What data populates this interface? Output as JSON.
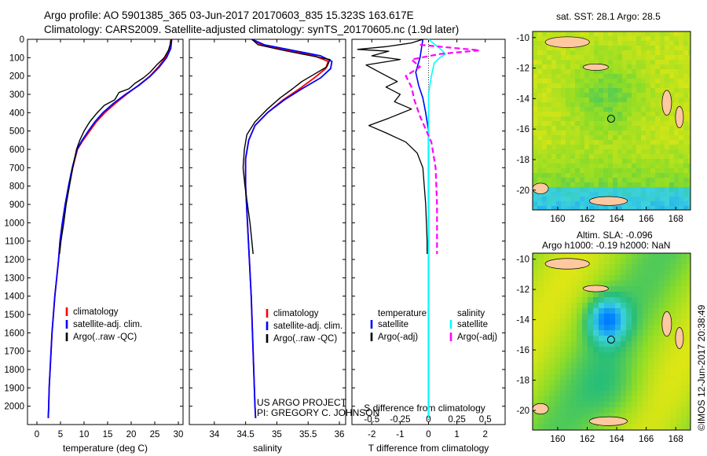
{
  "header": {
    "line1": "Argo profile: AO 5901385_365 03-Jun-2017 20170603_835 15.323S 163.617E",
    "line2": "Climatology: CARS2009. Satellite-adjusted climatology: synTS_20170605.nc (1.9d later)"
  },
  "credits": {
    "project": "US ARGO PROJECT",
    "pi": "PI: GREGORY C. JOHNSON",
    "imos": "©IMOS 12-Jun-2017 20:38:49"
  },
  "maps": {
    "sst_title": "sat. SST: 28.1 Argo: 28.5",
    "sla_title1": "Altim. SLA: -0.096",
    "sla_title2": "Argo h1000: -0.19 h2000: NaN",
    "lon_ticks": [
      "160",
      "162",
      "164",
      "166",
      "168"
    ],
    "lat_ticks": [
      "-10",
      "-12",
      "-14",
      "-16",
      "-18",
      "-20"
    ],
    "lon_range": [
      158.3,
      169.0
    ],
    "lat_range": [
      -21.3,
      -9.6
    ],
    "float_position": [
      163.617,
      -15.323
    ]
  },
  "chart_data": [
    {
      "type": "line",
      "xlabel": "temperature (deg C)",
      "xlim": [
        -2,
        31
      ],
      "ylim": [
        2100,
        0
      ],
      "xticks": [
        0,
        5,
        10,
        15,
        20,
        25,
        30
      ],
      "yticks": [
        0,
        100,
        200,
        300,
        400,
        500,
        600,
        700,
        800,
        900,
        1000,
        1100,
        1200,
        1300,
        1400,
        1500,
        1600,
        1700,
        1800,
        1900,
        2000
      ],
      "legend": [
        "climatology",
        "satellite-adj. clim.",
        "Argo(..raw -QC)"
      ],
      "series": [
        {
          "name": "climatology",
          "color": "#ff0000",
          "width": 1.8,
          "points": [
            [
              28.4,
              0
            ],
            [
              28.2,
              50
            ],
            [
              27.2,
              100
            ],
            [
              25.8,
              150
            ],
            [
              24.0,
              200
            ],
            [
              21.6,
              250
            ],
            [
              19.0,
              300
            ],
            [
              16.6,
              350
            ],
            [
              14.4,
              400
            ],
            [
              12.6,
              450
            ],
            [
              11.2,
              500
            ],
            [
              9.8,
              550
            ],
            [
              8.6,
              600
            ],
            [
              7.6,
              700
            ],
            [
              6.8,
              800
            ],
            [
              6.0,
              900
            ],
            [
              5.4,
              1000
            ],
            [
              4.9,
              1100
            ],
            [
              4.6,
              1200
            ],
            [
              4.2,
              1300
            ],
            [
              3.8,
              1400
            ],
            [
              3.5,
              1500
            ],
            [
              3.2,
              1600
            ],
            [
              3.0,
              1700
            ],
            [
              2.8,
              1800
            ],
            [
              2.6,
              1900
            ],
            [
              2.5,
              2000
            ],
            [
              2.4,
              2065
            ]
          ]
        },
        {
          "name": "satellite-adj. clim.",
          "color": "#0000ff",
          "width": 1.8,
          "points": [
            [
              28.6,
              0
            ],
            [
              28.4,
              50
            ],
            [
              27.5,
              100
            ],
            [
              26.0,
              150
            ],
            [
              24.1,
              200
            ],
            [
              21.7,
              250
            ],
            [
              18.8,
              300
            ],
            [
              16.2,
              350
            ],
            [
              14.0,
              400
            ],
            [
              12.3,
              450
            ],
            [
              10.9,
              500
            ],
            [
              9.6,
              550
            ],
            [
              8.5,
              600
            ],
            [
              7.5,
              700
            ],
            [
              6.7,
              800
            ],
            [
              6.0,
              900
            ],
            [
              5.4,
              1000
            ],
            [
              4.9,
              1100
            ],
            [
              4.6,
              1200
            ],
            [
              4.2,
              1300
            ],
            [
              3.8,
              1400
            ],
            [
              3.5,
              1500
            ],
            [
              3.2,
              1600
            ],
            [
              3.0,
              1700
            ],
            [
              2.8,
              1800
            ],
            [
              2.6,
              1900
            ],
            [
              2.5,
              2000
            ],
            [
              2.4,
              2065
            ]
          ]
        },
        {
          "name": "Argo(..raw -QC)",
          "color": "#000000",
          "width": 1.4,
          "points": [
            [
              28.5,
              0
            ],
            [
              28.3,
              25
            ],
            [
              27.9,
              60
            ],
            [
              27.0,
              100
            ],
            [
              25.4,
              140
            ],
            [
              24.0,
              180
            ],
            [
              22.6,
              210
            ],
            [
              20.8,
              240
            ],
            [
              19.5,
              270
            ],
            [
              17.4,
              290
            ],
            [
              16.5,
              330
            ],
            [
              14.3,
              360
            ],
            [
              12.8,
              400
            ],
            [
              11.2,
              450
            ],
            [
              10.0,
              500
            ],
            [
              9.1,
              550
            ],
            [
              8.4,
              600
            ],
            [
              7.6,
              700
            ],
            [
              6.9,
              800
            ],
            [
              6.2,
              900
            ],
            [
              5.7,
              1000
            ],
            [
              5.1,
              1100
            ],
            [
              4.8,
              1170
            ]
          ]
        }
      ]
    },
    {
      "type": "line",
      "xlabel": "salinity",
      "xlim": [
        33.6,
        36.1
      ],
      "ylim": [
        2100,
        0
      ],
      "xticks": [
        34,
        34.5,
        35,
        35.5,
        36
      ],
      "xticklabels": [
        "34",
        "34.5",
        "35",
        "35.5",
        "36"
      ],
      "yticks": [
        0,
        100,
        200,
        300,
        400,
        500,
        600,
        700,
        800,
        900,
        1000,
        1100,
        1200,
        1300,
        1400,
        1500,
        1600,
        1700,
        1800,
        1900,
        2000
      ],
      "legend": [
        "climatology",
        "satellite-adj. clim.",
        "Argo(..raw -QC)"
      ],
      "series": [
        {
          "name": "climatology",
          "color": "#ff0000",
          "width": 1.8,
          "points": [
            [
              34.6,
              0
            ],
            [
              34.75,
              30
            ],
            [
              35.2,
              60
            ],
            [
              35.6,
              90
            ],
            [
              35.82,
              120
            ],
            [
              35.78,
              160
            ],
            [
              35.6,
              210
            ],
            [
              35.36,
              270
            ],
            [
              35.1,
              330
            ],
            [
              34.85,
              400
            ],
            [
              34.65,
              470
            ],
            [
              34.55,
              550
            ],
            [
              34.5,
              650
            ],
            [
              34.5,
              800
            ],
            [
              34.53,
              1000
            ],
            [
              34.56,
              1200
            ],
            [
              34.59,
              1400
            ],
            [
              34.61,
              1600
            ],
            [
              34.63,
              1800
            ],
            [
              34.65,
              2000
            ],
            [
              34.66,
              2065
            ]
          ]
        },
        {
          "name": "satellite-adj. clim.",
          "color": "#0000ff",
          "width": 1.8,
          "points": [
            [
              34.6,
              0
            ],
            [
              34.8,
              30
            ],
            [
              35.25,
              60
            ],
            [
              35.7,
              90
            ],
            [
              35.88,
              120
            ],
            [
              35.86,
              160
            ],
            [
              35.7,
              210
            ],
            [
              35.4,
              270
            ],
            [
              35.12,
              330
            ],
            [
              34.85,
              400
            ],
            [
              34.65,
              470
            ],
            [
              34.55,
              550
            ],
            [
              34.5,
              650
            ],
            [
              34.5,
              800
            ],
            [
              34.53,
              1000
            ],
            [
              34.56,
              1200
            ],
            [
              34.59,
              1400
            ],
            [
              34.61,
              1600
            ],
            [
              34.63,
              1800
            ],
            [
              34.65,
              2000
            ],
            [
              34.66,
              2065
            ]
          ]
        },
        {
          "name": "Argo(..raw -QC)",
          "color": "#000000",
          "width": 1.4,
          "points": [
            [
              34.6,
              0
            ],
            [
              34.7,
              30
            ],
            [
              35.1,
              60
            ],
            [
              35.55,
              90
            ],
            [
              35.85,
              110
            ],
            [
              35.8,
              150
            ],
            [
              35.6,
              190
            ],
            [
              35.4,
              230
            ],
            [
              35.25,
              270
            ],
            [
              35.05,
              320
            ],
            [
              34.85,
              380
            ],
            [
              34.65,
              450
            ],
            [
              34.52,
              520
            ],
            [
              34.48,
              600
            ],
            [
              34.46,
              700
            ],
            [
              34.49,
              800
            ],
            [
              34.53,
              900
            ],
            [
              34.57,
              1000
            ],
            [
              34.6,
              1100
            ],
            [
              34.62,
              1170
            ]
          ]
        }
      ]
    },
    {
      "type": "line",
      "xlabel": "T difference from climatology",
      "xlabel2": "S difference from climatology",
      "xlim": [
        -2.7,
        2.7
      ],
      "ylim": [
        2100,
        0
      ],
      "xticks": [
        -2,
        -1,
        0,
        1,
        2
      ],
      "xticks_S": [
        -0.5,
        -0.25,
        0,
        0.25,
        0.5
      ],
      "xticks_S_labels": [
        "-0.5",
        "-0.25",
        "0",
        "0.25",
        "0.5"
      ],
      "S_scale": 4,
      "yticks": [
        0,
        100,
        200,
        300,
        400,
        500,
        600,
        700,
        800,
        900,
        1000,
        1100,
        1200,
        1300,
        1400,
        1500,
        1600,
        1700,
        1800,
        1900,
        2000
      ],
      "legend_headers": [
        "temperature",
        "salinity"
      ],
      "legend": [
        "satellite",
        "Argo(-adj)",
        "satellite",
        "Argo(-adj)"
      ],
      "series": [
        {
          "name": "temperature satellite",
          "color": "#0000ff",
          "width": 1.6,
          "dash": "",
          "points": [
            [
              -0.2,
              0
            ],
            [
              -0.25,
              50
            ],
            [
              -0.3,
              100
            ],
            [
              -0.45,
              180
            ],
            [
              -0.35,
              250
            ],
            [
              -0.2,
              320
            ],
            [
              -0.1,
              400
            ],
            [
              0.0,
              500
            ],
            [
              0.0,
              2065
            ]
          ]
        },
        {
          "name": "temperature Argo(-adj)",
          "color": "#000000",
          "width": 1.3,
          "dash": "",
          "points": [
            [
              -0.2,
              0
            ],
            [
              -0.6,
              20
            ],
            [
              -1.5,
              40
            ],
            [
              -2.5,
              55
            ],
            [
              -1.4,
              65
            ],
            [
              -2.0,
              90
            ],
            [
              -1.0,
              110
            ],
            [
              -2.2,
              140
            ],
            [
              -1.6,
              190
            ],
            [
              -1.1,
              230
            ],
            [
              -1.5,
              260
            ],
            [
              -1.0,
              300
            ],
            [
              -1.2,
              340
            ],
            [
              -0.6,
              380
            ],
            [
              -1.4,
              430
            ],
            [
              -2.1,
              470
            ],
            [
              -1.5,
              510
            ],
            [
              -0.8,
              560
            ],
            [
              -0.4,
              620
            ],
            [
              -0.2,
              700
            ],
            [
              -0.1,
              900
            ],
            [
              -0.05,
              1100
            ],
            [
              -0.05,
              1170
            ]
          ]
        },
        {
          "name": "salinity satellite",
          "color": "#00ffff",
          "width": 1.6,
          "dash": "",
          "points": [
            [
              0.0,
              0
            ],
            [
              0.4,
              50
            ],
            [
              0.6,
              80
            ],
            [
              0.4,
              100
            ],
            [
              0.2,
              130
            ],
            [
              0.1,
              200
            ],
            [
              0.0,
              300
            ],
            [
              0.0,
              2065
            ]
          ]
        },
        {
          "name": "salinity Argo(-adj)",
          "color": "#ff00ff",
          "width": 2.2,
          "dash": "7,4",
          "points": [
            [
              -0.3,
              30
            ],
            [
              1.8,
              60
            ],
            [
              0.4,
              80
            ],
            [
              -0.6,
              110
            ],
            [
              -0.3,
              150
            ],
            [
              -0.8,
              200
            ],
            [
              -0.6,
              260
            ],
            [
              -0.5,
              330
            ],
            [
              -0.3,
              420
            ],
            [
              0.1,
              560
            ],
            [
              0.25,
              700
            ],
            [
              0.3,
              900
            ],
            [
              0.3,
              1100
            ],
            [
              0.3,
              1170
            ]
          ]
        }
      ]
    }
  ]
}
